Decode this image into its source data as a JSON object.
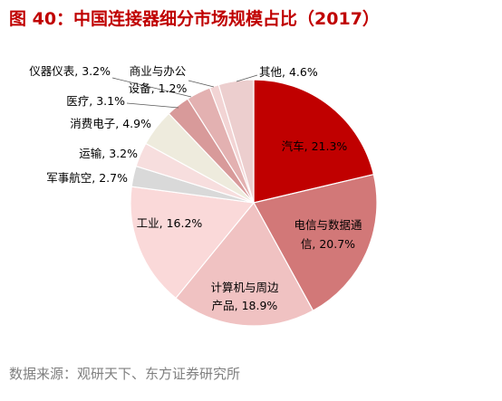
{
  "chart_data": {
    "type": "pie",
    "title": "图 40：中国连接器细分市场规模占比（2017）",
    "unit": "%",
    "legend": "none",
    "slices": [
      {
        "name": "汽车",
        "value": 21.3,
        "color": "#C00000"
      },
      {
        "name": "电信与数据通信",
        "value": 20.7,
        "color": "#D27878"
      },
      {
        "name": "计算机与周边产品",
        "value": 18.9,
        "color": "#F0C2C2"
      },
      {
        "name": "工业",
        "value": 16.2,
        "color": "#FAD9D9"
      },
      {
        "name": "军事航空",
        "value": 2.7,
        "color": "#D9D9D9"
      },
      {
        "name": "运输",
        "value": 3.2,
        "color": "#F7DEDE"
      },
      {
        "name": "消费电子",
        "value": 4.9,
        "color": "#EEEBDD"
      },
      {
        "name": "医疗",
        "value": 3.1,
        "color": "#D89A9A"
      },
      {
        "name": "仪器仪表",
        "value": 3.2,
        "color": "#E3B1B1"
      },
      {
        "name": "商业与办公设备",
        "value": 1.2,
        "color": "#F2D4D4"
      },
      {
        "name": "其他",
        "value": 4.6,
        "color": "#ECCECE"
      }
    ]
  },
  "source": "数据来源：观研天下、东方证券研究所",
  "colors": {
    "title": "#C00000",
    "source": "#7F7F7F"
  }
}
